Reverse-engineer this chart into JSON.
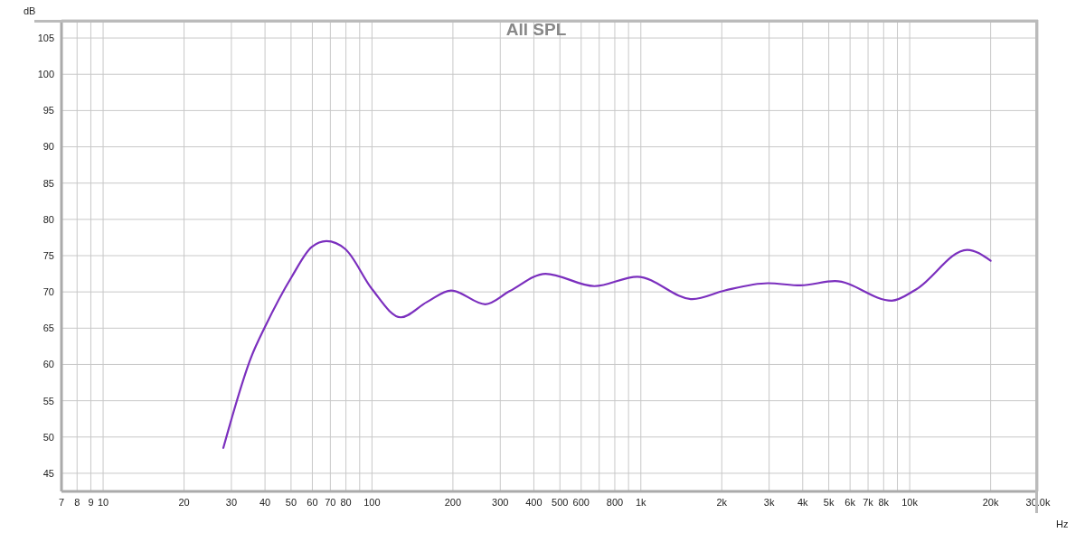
{
  "chart_data": {
    "type": "line",
    "title": "All SPL",
    "xlabel": "Hz",
    "ylabel": "dB",
    "log": "x",
    "grid": true,
    "legend": false,
    "marker": "none",
    "line_style": "solid",
    "xlim": [
      7,
      30000
    ],
    "ylim": [
      42.5,
      107.5
    ],
    "xticks": [
      7,
      8,
      9,
      10,
      20,
      30,
      40,
      50,
      60,
      70,
      80,
      {
        "value": 90,
        "label": null
      },
      100,
      200,
      300,
      400,
      500,
      600,
      {
        "value": 700,
        "label": null
      },
      800,
      {
        "value": 900,
        "label": null
      },
      {
        "value": 1000,
        "label": "1k"
      },
      {
        "value": 2000,
        "label": "2k"
      },
      {
        "value": 3000,
        "label": "3k"
      },
      {
        "value": 4000,
        "label": "4k"
      },
      {
        "value": 5000,
        "label": "5k"
      },
      {
        "value": 6000,
        "label": "6k"
      },
      {
        "value": 7000,
        "label": "7k"
      },
      {
        "value": 8000,
        "label": "8k"
      },
      {
        "value": 9000,
        "label": null
      },
      {
        "value": 10000,
        "label": "10k"
      },
      {
        "value": 20000,
        "label": "20k"
      },
      {
        "value": 30000,
        "label": "30.0k"
      }
    ],
    "yticks": [
      45,
      50,
      55,
      60,
      65,
      70,
      75,
      80,
      85,
      90,
      95,
      100,
      105
    ],
    "series": [
      {
        "color": "#7b2fbe",
        "x": [
          28,
          35.7,
          39.9,
          50.5,
          59.7,
          67.7,
          79.6,
          100,
          128,
          160,
          197,
          264,
          325,
          442,
          672,
          970,
          1556,
          2057,
          2970,
          3930,
          5270,
          8570,
          10520,
          16370,
          20000
        ],
        "values": [
          48.5,
          61.2,
          65.1,
          72.2,
          76.2,
          77,
          75.9,
          70.4,
          66.5,
          68.6,
          70.2,
          68.3,
          70.1,
          72.5,
          70.8,
          72.1,
          69,
          70.2,
          71.2,
          70.9,
          71.5,
          68.8,
          70.3,
          75.8,
          74.3
        ]
      }
    ]
  }
}
